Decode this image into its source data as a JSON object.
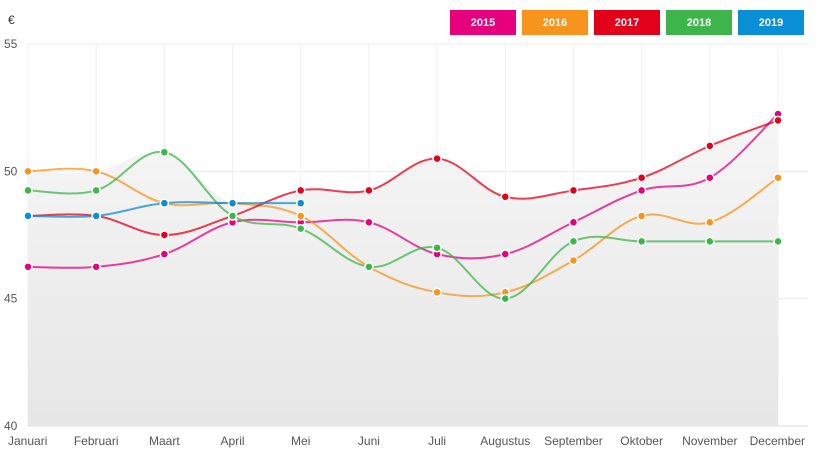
{
  "chart_data": {
    "type": "line",
    "title": "",
    "ylabel": "€",
    "xlabel": "",
    "categories": [
      "Januari",
      "Februari",
      "Maart",
      "April",
      "Mei",
      "Juni",
      "Juli",
      "Augustus",
      "September",
      "Oktober",
      "November",
      "December"
    ],
    "ylim": [
      40,
      55
    ],
    "yticks": [
      "40",
      "45",
      "50",
      "55"
    ],
    "grid": true,
    "legend": "top-right",
    "series": [
      {
        "name": "2015",
        "color": "#e6007e",
        "values": [
          46.25,
          46.25,
          46.75,
          48.0,
          48.0,
          48.0,
          46.75,
          46.75,
          48.0,
          49.25,
          49.75,
          52.25
        ]
      },
      {
        "name": "2016",
        "color": "#f7941d",
        "values": [
          50.0,
          50.0,
          48.75,
          48.75,
          48.25,
          46.25,
          45.25,
          45.25,
          46.5,
          48.25,
          48.0,
          49.75
        ]
      },
      {
        "name": "2017",
        "color": "#e3001b",
        "values": [
          48.25,
          48.25,
          47.5,
          48.25,
          49.25,
          49.25,
          50.5,
          49.0,
          49.25,
          49.75,
          51.0,
          52.0
        ]
      },
      {
        "name": "2018",
        "color": "#3db54a",
        "values": [
          49.25,
          49.25,
          50.75,
          48.25,
          47.75,
          46.25,
          47.0,
          45.0,
          47.25,
          47.25,
          47.25,
          47.25
        ]
      },
      {
        "name": "2019",
        "color": "#0a8fd6",
        "values": [
          48.25,
          48.25,
          48.75,
          48.75,
          48.75,
          null,
          null,
          null,
          null,
          null,
          null,
          null
        ]
      }
    ]
  }
}
